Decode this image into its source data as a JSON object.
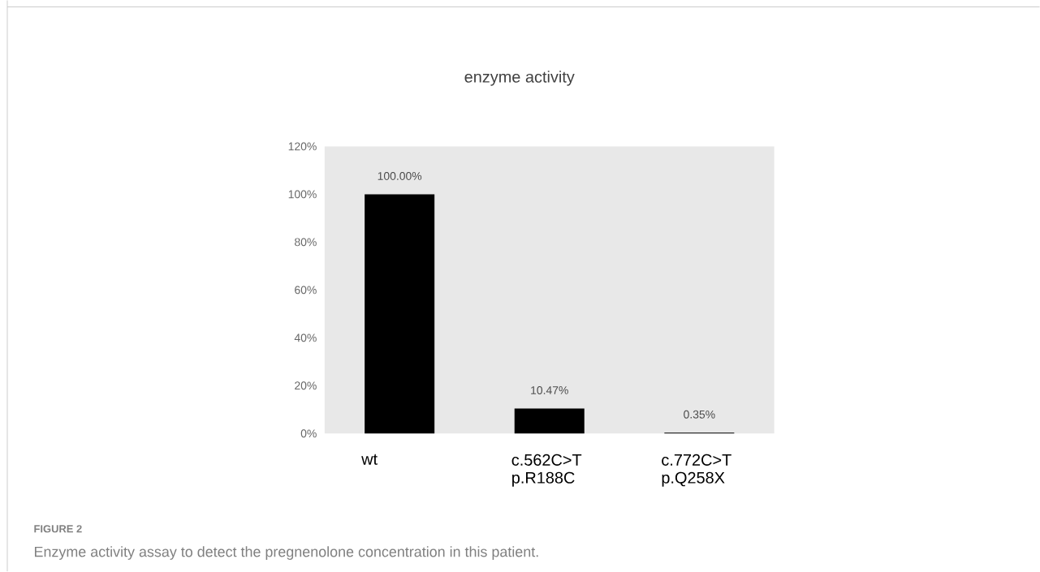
{
  "chart_data": {
    "type": "bar",
    "title": "enzyme activity",
    "categories": [
      "wt",
      "c.562C>T p.R188C",
      "c.772C>T p.Q258X"
    ],
    "values": [
      100,
      10.47,
      0.35
    ],
    "value_labels": [
      "100.00%",
      "10.47%",
      "0.35%"
    ],
    "color": "#000000",
    "ylim": [
      0,
      120
    ],
    "yticks": [
      {
        "value": 0,
        "label": "0%"
      },
      {
        "value": 20,
        "label": "20%"
      },
      {
        "value": 40,
        "label": "40%"
      },
      {
        "value": 60,
        "label": "60%"
      },
      {
        "value": 80,
        "label": "80%"
      },
      {
        "value": 100,
        "label": "100%"
      },
      {
        "value": 120,
        "label": "120%"
      }
    ],
    "grid": false,
    "annotations": [
      "FIGURE 2",
      "Enzyme activity assay to detect the pregnenolone concentration in this patient."
    ]
  }
}
